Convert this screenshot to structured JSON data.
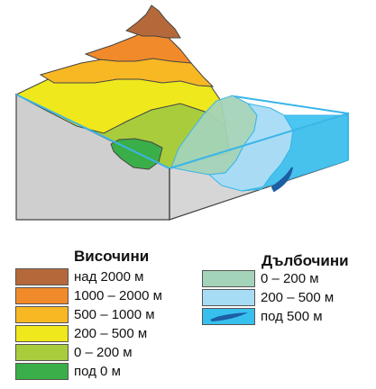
{
  "legend": {
    "heights": {
      "title": "Височини",
      "items": [
        {
          "label": "над 2000 м",
          "color": "#b5693a"
        },
        {
          "label": "1000 – 2000 м",
          "color": "#f18a2a"
        },
        {
          "label": "500 – 1000 м",
          "color": "#f8b824"
        },
        {
          "label": "200 – 500 м",
          "color": "#eee81c"
        },
        {
          "label": "0 – 200 м",
          "color": "#a9cc3c"
        },
        {
          "label": "под 0 м",
          "color": "#3aae48"
        }
      ]
    },
    "depths": {
      "title": "Дълбочини",
      "items": [
        {
          "label": "0 – 200 м",
          "color": "#a3d3b8"
        },
        {
          "label": "200 – 500 м",
          "color": "#a7dcf5"
        },
        {
          "label": "под 500 м",
          "color": "#37c0ee",
          "trench_color": "#1d5ea3"
        }
      ]
    }
  },
  "colors": {
    "block_side": "#cfcfd0",
    "water_outline": "#3bb5e8",
    "outline": "#444444"
  }
}
